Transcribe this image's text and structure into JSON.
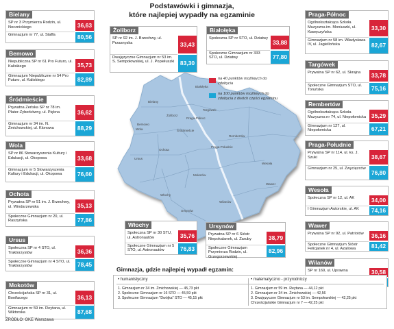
{
  "title": "Podstawówki i gimnazja,\nktóre najlepiej wypadły na egzaminie",
  "legend": {
    "red_text": "na 40 punktów możliwych do zdobycia",
    "cyan_text": "na 100 punktów możliwych do zdobycia z dwóch części egzaminu",
    "red_color": "#d8253a",
    "cyan_color": "#1ba6d6"
  },
  "districts": [
    {
      "name": "Bielany",
      "rows": [
        {
          "text": "SP nr 3 Przymierza Rodzin, ul. Nocznickiego",
          "score": "36,63",
          "kind": "red"
        },
        {
          "text": "Gimnazjum nr 77, ul. Staffa",
          "score": "80,56",
          "kind": "cyan"
        }
      ]
    },
    {
      "name": "Bemowo",
      "rows": [
        {
          "text": "Niepubliczna SP nr 61 Pro Futuro, ul. Kaliskiego",
          "score": "35,73",
          "kind": "red"
        },
        {
          "text": "Gimnazjum Niepubliczne nr 54 Pro Futuro, ul. Kaliskiego",
          "score": "82,89",
          "kind": "cyan"
        }
      ]
    },
    {
      "name": "Śródmieście",
      "rows": [
        {
          "text": "Prywatna Żeńska SP nr 78 im. Plater-Zyberkówny, ul. Piękna",
          "score": "36,62",
          "kind": "red"
        },
        {
          "text": "Gimnazjum nr 34 im. N. Żmichowskiej, ul. Klonowa",
          "score": "88,29",
          "kind": "cyan"
        }
      ]
    },
    {
      "name": "Wola",
      "rows": [
        {
          "text": "SP nr 86 Stowarzyszenia Kultury i Edukacji, ul. Okopowa",
          "score": "33,68",
          "kind": "red"
        },
        {
          "text": "Gimnazjum nr 5 Stowarzyszenia Kultury i Edukacji, ul. Okopowa",
          "score": "76,60",
          "kind": "cyan"
        }
      ]
    },
    {
      "name": "Ochota",
      "rows": [
        {
          "text": "Prywatna SP nr 51 im. J. Brzechwy, ul. Windarzewska",
          "score": "35,13",
          "kind": "red"
        },
        {
          "text": "Społeczne Gimnazjum nr 20, ul. Raszyńska",
          "score": "77,86",
          "kind": "cyan"
        }
      ]
    },
    {
      "name": "Ursus",
      "rows": [
        {
          "text": "Społeczna SP nr 4 STO, ul. Traktorzystów",
          "score": "36,36",
          "kind": "red"
        },
        {
          "text": "Społeczne Gimnazjum nr 4 STO, ul. Traktorzystów",
          "score": "78,45",
          "kind": "cyan"
        }
      ]
    },
    {
      "name": "Mokotów",
      "rows": [
        {
          "text": "Chrześcijańska SP nr 31, ul. Bonifacego",
          "score": "36,13",
          "kind": "red"
        },
        {
          "text": "Gimnazjum nr 59 im. Reytana, ul. Wiktorska",
          "score": "87,68",
          "kind": "cyan"
        }
      ]
    },
    {
      "name": "Żoliborz",
      "rows": [
        {
          "text": "SP nr 92 im. J. Brzechwy, ul. Przasnyska",
          "score": "33,43",
          "kind": "red"
        },
        {
          "text": "Dwujęzyczne Gimnazjum nr 53 im. S. Sempołowskiej, ul. J. Popiełuszki",
          "score": "83,30",
          "kind": "cyan"
        }
      ]
    },
    {
      "name": "Białołęka",
      "rows": [
        {
          "text": "Społeczna SP nr STO, ul. Dziatwy",
          "score": "33,88",
          "kind": "red"
        },
        {
          "text": "Społeczne Gimnazjum nr 333 STO, ul. Dziatwy",
          "score": "77,80",
          "kind": "cyan"
        }
      ]
    },
    {
      "name": "Praga-Północ",
      "rows": [
        {
          "text": "Ogólnokształcąca Szkoła Muzyczna im. Moniuszki, ul. Kawęczyńska",
          "score": "33,30",
          "kind": "red"
        },
        {
          "text": "Gimnazjum nr 58 im. Władysława IV, ul. Jagiellońska",
          "score": "82,67",
          "kind": "cyan"
        }
      ]
    },
    {
      "name": "Targówek",
      "rows": [
        {
          "text": "Prywatna SP nr 62, ul. Skrajna",
          "score": "33,78",
          "kind": "red"
        },
        {
          "text": "Społeczne Gimnazjum STO, ul. Toruńska",
          "score": "75,16",
          "kind": "cyan"
        }
      ]
    },
    {
      "name": "Rembertów",
      "rows": [
        {
          "text": "Ogólnokształcąca Szkoła Muzyczna nr 74, ul. Niepołomicka",
          "score": "35,29",
          "kind": "red"
        },
        {
          "text": "Gimnazjum nr 127, ul. Niepołomicka",
          "score": "67,21",
          "kind": "cyan"
        }
      ]
    },
    {
      "name": "Praga-Południe",
      "rows": [
        {
          "text": "Prywatna SP nr 114, ul. ks. J. Szuki",
          "score": "38,67",
          "kind": "red"
        },
        {
          "text": "Gimnazjum nr 25, ul. Zwycięzców",
          "score": "76,80",
          "kind": "cyan"
        }
      ]
    },
    {
      "name": "Wesoła",
      "rows": [
        {
          "text": "Społeczna SP nr 12, ul. AK",
          "score": "34,00",
          "kind": "red"
        },
        {
          "text": "I Gimnazjum Autorskie, ul. AK",
          "score": "74,16",
          "kind": "cyan"
        }
      ]
    },
    {
      "name": "Wawer",
      "rows": [
        {
          "text": "Prywatna SP nr 92, ul. Patriotów",
          "score": "36,16",
          "kind": "red"
        },
        {
          "text": "Społeczne Gimnazjum Sióstr Felicjanek nr 4, ul. Azaliowa",
          "score": "81,42",
          "kind": "cyan"
        }
      ]
    },
    {
      "name": "Wilanów",
      "rows": [
        {
          "text": "SP nr 169, ul. Uprawna",
          "score": "30,58",
          "kind": "red"
        },
        {
          "text": "Gimnazjum nr 117 im. Rutkiewicz, ul. Gubinowska",
          "score": "69,96",
          "kind": "cyan"
        }
      ]
    },
    {
      "name": "Włochy",
      "rows": [
        {
          "text": "Społeczna SP nr 30 STU, ul. Astronautów",
          "score": "35,76",
          "kind": "red"
        },
        {
          "text": "Społeczne Gimnazjum nr 5 STO, ul. Astronautów",
          "score": "76,83",
          "kind": "cyan"
        }
      ]
    },
    {
      "name": "Ursynów",
      "rows": [
        {
          "text": "Prywatna SP nr 6 Sióstr Niepokalanek, ul. Zaruby",
          "score": "38,79",
          "kind": "red"
        },
        {
          "text": "Społeczne Gimnazjum Przymierza Rodzin, ul. Grzegorzewskiej",
          "score": "82,96",
          "kind": "cyan"
        }
      ]
    }
  ],
  "map_labels": [
    "Białołęka",
    "Bielany",
    "Żoliborz",
    "Targówek",
    "Bemowo",
    "Praga-Północ",
    "Wola",
    "Śródmieście",
    "Rembertów",
    "Praga-Południe",
    "Ochota",
    "Ursus",
    "Wesoła",
    "Mokotów",
    "Włochy",
    "Wawer",
    "Ursynów",
    "Wilanów"
  ],
  "bottom": {
    "title": "Gimnazja, gdzie najlepiej wypadł egzamin:",
    "humanistic": {
      "label": "humanistyczny",
      "items": [
        "1. Gimnazjum nr 34 im. Żmichowskiej — 45,73 pkt",
        "2. Społeczne Gimnazjum nr 16 STO — 45,59 pkt",
        "3. Społeczne Gimnazjum \"Dwójka\" STO — 45,15 pkt"
      ]
    },
    "math": {
      "label": "matematyczno - przyrodniczy",
      "items": [
        "1. Gimnazjum nr 59 im. Reytana — 44,12 pkt",
        "2. Gimnazjum nr 34 im. Żmichowskiej — 42,56",
        "3. Dwujęzyczne Gimnazjum nr 53 im. Sempołowskiej — 42,25 pkt",
        "Chrześcijańskie Gimnazjum nr 7 — 42,25 pkt"
      ]
    }
  },
  "source": "ŹRÓDŁO: OKE Warszawa"
}
